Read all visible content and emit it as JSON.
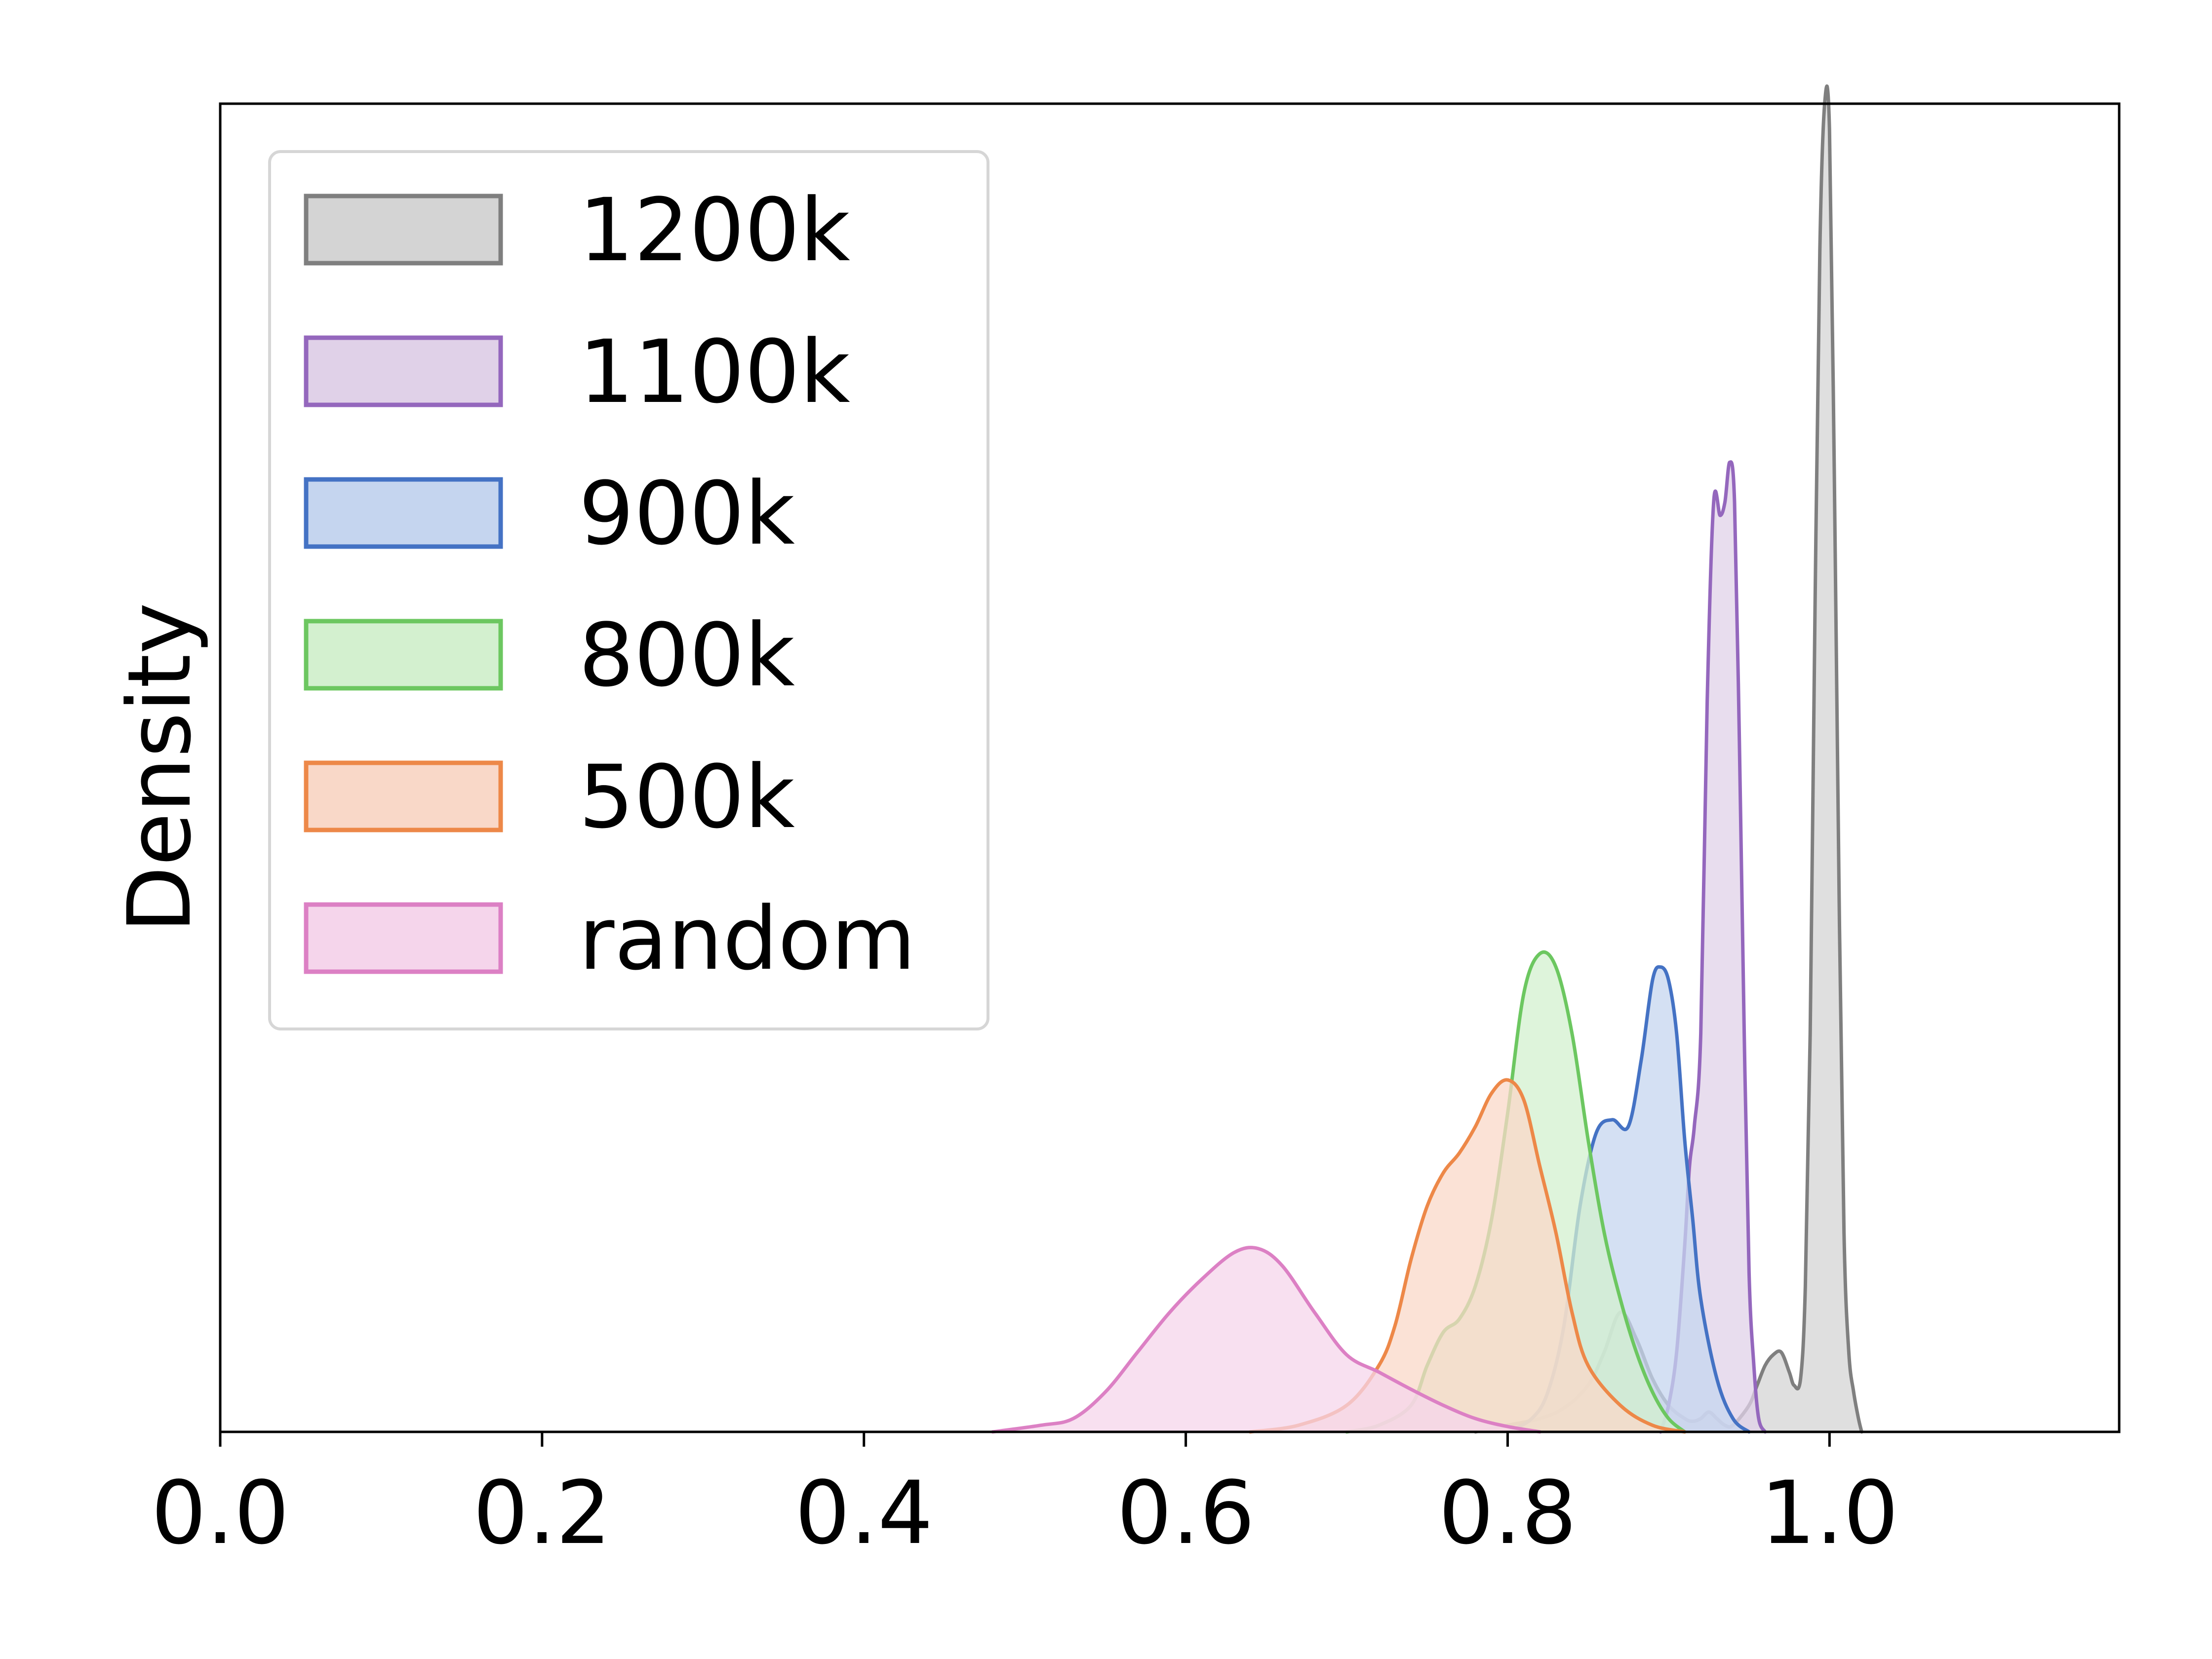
{
  "chart_data": {
    "type": "area",
    "title": "",
    "xlabel": "",
    "ylabel": "Density",
    "xlim": [
      0.0,
      1.18
    ],
    "ylim": [
      0,
      1.0
    ],
    "xticks": [
      "0.0",
      "0.2",
      "0.4",
      "0.6",
      "0.8",
      "1.0"
    ],
    "yticks_shown": false,
    "grid": false,
    "legend_position": "top-left",
    "series": [
      {
        "name": "1200k",
        "line_color": "#7f7f7f",
        "fill_color": "#d4d4d4",
        "x": [
          0.78,
          0.8,
          0.82,
          0.835,
          0.85,
          0.86,
          0.87,
          0.88,
          0.89,
          0.9,
          0.91,
          0.915,
          0.92,
          0.925,
          0.93,
          0.935,
          0.94,
          0.95,
          0.955,
          0.96,
          0.965,
          0.97,
          0.975,
          0.978,
          0.982,
          0.985,
          0.988,
          0.991,
          0.994,
          0.997,
          1.0,
          1.003,
          1.006,
          1.009,
          1.012,
          1.015,
          1.018,
          1.02
        ],
        "y": [
          0.0,
          0.005,
          0.01,
          0.018,
          0.035,
          0.06,
          0.09,
          0.07,
          0.04,
          0.02,
          0.01,
          0.008,
          0.01,
          0.015,
          0.01,
          0.005,
          0.005,
          0.02,
          0.035,
          0.05,
          0.058,
          0.06,
          0.045,
          0.035,
          0.04,
          0.11,
          0.3,
          0.62,
          0.89,
          1.0,
          0.98,
          0.72,
          0.4,
          0.15,
          0.06,
          0.03,
          0.01,
          0.0
        ]
      },
      {
        "name": "1100k",
        "line_color": "#9467bd",
        "fill_color": "#e0d1e8",
        "x": [
          0.895,
          0.9,
          0.905,
          0.91,
          0.913,
          0.916,
          0.92,
          0.924,
          0.928,
          0.932,
          0.935,
          0.938,
          0.941,
          0.944,
          0.947,
          0.95,
          0.953,
          0.956,
          0.96
        ],
        "y": [
          0.0,
          0.02,
          0.06,
          0.14,
          0.2,
          0.23,
          0.3,
          0.55,
          0.7,
          0.69,
          0.7,
          0.73,
          0.7,
          0.52,
          0.3,
          0.12,
          0.05,
          0.01,
          0.0
        ]
      },
      {
        "name": "900k",
        "line_color": "#4472c4",
        "fill_color": "#c5d5ef",
        "x": [
          0.8,
          0.815,
          0.825,
          0.835,
          0.845,
          0.855,
          0.865,
          0.875,
          0.883,
          0.89,
          0.895,
          0.9,
          0.905,
          0.91,
          0.915,
          0.92,
          0.93,
          0.94,
          0.95
        ],
        "y": [
          0.0,
          0.01,
          0.03,
          0.08,
          0.17,
          0.225,
          0.235,
          0.23,
          0.28,
          0.34,
          0.35,
          0.34,
          0.3,
          0.22,
          0.16,
          0.1,
          0.04,
          0.01,
          0.0
        ]
      },
      {
        "name": "800k",
        "line_color": "#6cc760",
        "fill_color": "#d3f0cf",
        "x": [
          0.7,
          0.72,
          0.74,
          0.75,
          0.76,
          0.77,
          0.78,
          0.79,
          0.8,
          0.81,
          0.82,
          0.83,
          0.84,
          0.85,
          0.86,
          0.87,
          0.88,
          0.89,
          0.9,
          0.91
        ],
        "y": [
          0.0,
          0.005,
          0.02,
          0.05,
          0.075,
          0.085,
          0.11,
          0.16,
          0.24,
          0.33,
          0.36,
          0.35,
          0.3,
          0.22,
          0.15,
          0.1,
          0.06,
          0.03,
          0.01,
          0.0
        ]
      },
      {
        "name": "500k",
        "line_color": "#ed8848",
        "fill_color": "#f9d8c8",
        "x": [
          0.64,
          0.67,
          0.7,
          0.72,
          0.73,
          0.74,
          0.75,
          0.76,
          0.77,
          0.78,
          0.79,
          0.8,
          0.81,
          0.82,
          0.83,
          0.84,
          0.85,
          0.87,
          0.89,
          0.91
        ],
        "y": [
          0.0,
          0.005,
          0.02,
          0.05,
          0.08,
          0.13,
          0.17,
          0.195,
          0.21,
          0.23,
          0.255,
          0.265,
          0.25,
          0.2,
          0.15,
          0.09,
          0.05,
          0.02,
          0.005,
          0.0
        ]
      },
      {
        "name": "random",
        "line_color": "#dc80c4",
        "fill_color": "#f5d5eb",
        "x": [
          0.48,
          0.51,
          0.53,
          0.55,
          0.57,
          0.59,
          0.61,
          0.63,
          0.645,
          0.66,
          0.68,
          0.7,
          0.72,
          0.74,
          0.76,
          0.78,
          0.8,
          0.82
        ],
        "y": [
          0.0,
          0.005,
          0.01,
          0.03,
          0.06,
          0.09,
          0.115,
          0.135,
          0.138,
          0.125,
          0.09,
          0.058,
          0.045,
          0.032,
          0.02,
          0.01,
          0.004,
          0.0
        ]
      }
    ],
    "legend_order": [
      "1200k",
      "1100k",
      "900k",
      "800k",
      "500k",
      "random"
    ]
  }
}
